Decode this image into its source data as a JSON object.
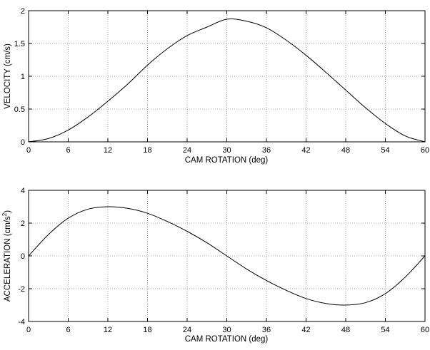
{
  "chart_data": [
    {
      "type": "line",
      "title": "",
      "xlabel": "CAM ROTATION (deg)",
      "ylabel": "VELOCITY (cm/s)",
      "xlim": [
        0,
        60
      ],
      "ylim": [
        0,
        2
      ],
      "xticks": [
        0,
        6,
        12,
        18,
        24,
        30,
        36,
        42,
        48,
        54,
        60
      ],
      "yticks": [
        0,
        0.5,
        1,
        1.5,
        2
      ],
      "xtick_labels": [
        "0",
        "6",
        "12",
        "18",
        "24",
        "30",
        "36",
        "42",
        "48",
        "54",
        "60"
      ],
      "ytick_labels": [
        "0",
        "0.5",
        "1",
        "1.5",
        "2"
      ],
      "grid": true,
      "line_color": "#000000",
      "series": [
        {
          "x": [
            0,
            3,
            6,
            9,
            12,
            15,
            18,
            21,
            24,
            27,
            30,
            33,
            36,
            39,
            42,
            45,
            48,
            51,
            54,
            57,
            60
          ],
          "y": [
            0,
            0.05,
            0.18,
            0.38,
            0.62,
            0.88,
            1.17,
            1.42,
            1.62,
            1.75,
            1.87,
            1.84,
            1.74,
            1.55,
            1.32,
            1.06,
            0.79,
            0.52,
            0.28,
            0.09,
            0
          ]
        }
      ]
    },
    {
      "type": "line",
      "title": "",
      "xlabel": "CAM ROTATION (deg)",
      "ylabel": "ACCELERATION (cm/s",
      "ylabel_sup": "2",
      "ylabel_suffix": ")",
      "xlim": [
        0,
        60
      ],
      "ylim": [
        -4,
        4
      ],
      "xticks": [
        0,
        6,
        12,
        18,
        24,
        30,
        36,
        42,
        48,
        54,
        60
      ],
      "yticks": [
        -4,
        -2,
        0,
        2,
        4
      ],
      "xtick_labels": [
        "0",
        "6",
        "12",
        "18",
        "24",
        "30",
        "36",
        "42",
        "48",
        "54",
        "60"
      ],
      "ytick_labels": [
        "-4",
        "-2",
        "0",
        "2",
        "4"
      ],
      "grid": true,
      "line_color": "#000000",
      "series": [
        {
          "x": [
            0,
            3,
            6,
            9,
            12,
            15,
            18,
            21,
            24,
            27,
            30,
            33,
            36,
            39,
            42,
            45,
            48,
            51,
            54,
            57,
            60
          ],
          "y": [
            0,
            1.3,
            2.3,
            2.85,
            3.0,
            2.9,
            2.6,
            2.1,
            1.5,
            0.8,
            0,
            -0.8,
            -1.5,
            -2.1,
            -2.6,
            -2.9,
            -3.0,
            -2.85,
            -2.3,
            -1.3,
            0
          ]
        }
      ]
    }
  ]
}
